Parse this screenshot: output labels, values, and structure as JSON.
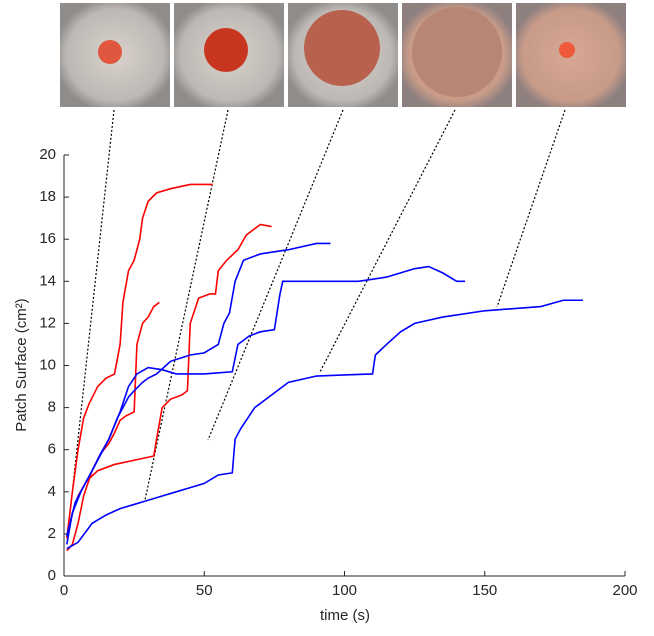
{
  "chart_data": {
    "type": "line",
    "xlabel": "time (s)",
    "ylabel": "Patch Surface (cm²)",
    "xlim": [
      0,
      200
    ],
    "xticks": [
      0,
      50,
      100,
      150,
      200
    ],
    "ylim": [
      0,
      20
    ],
    "yticks": [
      0,
      2,
      4,
      6,
      8,
      10,
      12,
      14,
      16,
      18,
      20
    ],
    "series": [
      {
        "color": "#ff0000",
        "x": [
          1,
          3,
          5,
          7,
          9,
          12,
          15,
          18,
          20,
          21,
          23,
          25,
          27,
          28,
          30,
          33,
          38,
          45,
          53
        ],
        "values": [
          1.8,
          4,
          6,
          7.5,
          8.2,
          9,
          9.4,
          9.6,
          11,
          13,
          14.5,
          15,
          16,
          17,
          17.8,
          18.2,
          18.4,
          18.6,
          18.6
        ]
      },
      {
        "color": "#ff0000",
        "x": [
          1,
          3,
          5,
          7,
          10,
          13,
          16,
          18,
          20,
          22,
          25,
          26,
          28,
          30,
          32,
          34
        ],
        "values": [
          1.2,
          1.5,
          2.5,
          3.8,
          5,
          5.8,
          6.3,
          6.8,
          7.4,
          7.6,
          7.8,
          11,
          12,
          12.3,
          12.8,
          13
        ]
      },
      {
        "color": "#ff0000",
        "x": [
          1,
          3,
          5,
          8,
          12,
          18,
          25,
          32,
          33,
          35,
          38,
          42,
          44,
          45,
          48,
          52,
          54,
          55,
          58,
          62,
          65,
          70,
          74
        ],
        "values": [
          1.8,
          3,
          3.8,
          4.5,
          5,
          5.3,
          5.5,
          5.7,
          6.5,
          8,
          8.4,
          8.6,
          8.8,
          12,
          13.2,
          13.4,
          13.4,
          14.5,
          15,
          15.5,
          16.2,
          16.7,
          16.6
        ]
      },
      {
        "color": "#0000ff",
        "x": [
          1,
          3,
          6,
          10,
          13,
          16,
          19,
          21,
          23,
          25,
          28,
          30,
          33,
          38,
          45,
          50,
          55,
          57,
          59,
          61,
          64,
          70,
          80,
          90,
          95
        ],
        "values": [
          1.5,
          3,
          4,
          5,
          5.8,
          6.5,
          7.5,
          8,
          8.5,
          8.8,
          9.2,
          9.4,
          9.6,
          10.2,
          10.5,
          10.6,
          11,
          12,
          12.5,
          14,
          15,
          15.3,
          15.5,
          15.8,
          15.8
        ]
      },
      {
        "color": "#0000ff",
        "x": [
          1,
          4,
          8,
          12,
          16,
          20,
          23,
          26,
          30,
          35,
          40,
          50,
          60,
          62,
          66,
          70,
          75,
          77,
          78,
          85,
          95,
          105,
          115,
          120,
          125,
          130,
          135,
          140,
          143
        ],
        "values": [
          1.9,
          3.5,
          4.5,
          5.5,
          6.5,
          7.8,
          9,
          9.6,
          9.9,
          9.8,
          9.6,
          9.6,
          9.7,
          11,
          11.4,
          11.6,
          11.7,
          13.4,
          14,
          14,
          14,
          14,
          14.2,
          14.4,
          14.6,
          14.7,
          14.4,
          14,
          14
        ]
      },
      {
        "color": "#0000ff",
        "x": [
          1,
          5,
          10,
          15,
          20,
          25,
          30,
          35,
          40,
          45,
          50,
          55,
          60,
          61,
          63,
          68,
          75,
          80,
          90,
          100,
          110,
          111,
          115,
          120,
          125,
          135,
          150,
          160,
          170,
          178,
          185
        ],
        "values": [
          1.3,
          1.6,
          2.5,
          2.9,
          3.2,
          3.4,
          3.6,
          3.8,
          4,
          4.2,
          4.4,
          4.8,
          4.9,
          6.5,
          7,
          8,
          8.7,
          9.2,
          9.5,
          9.55,
          9.6,
          10.5,
          11,
          11.6,
          12,
          12.3,
          12.6,
          12.7,
          12.8,
          13.1,
          13.1
        ]
      }
    ]
  }
}
